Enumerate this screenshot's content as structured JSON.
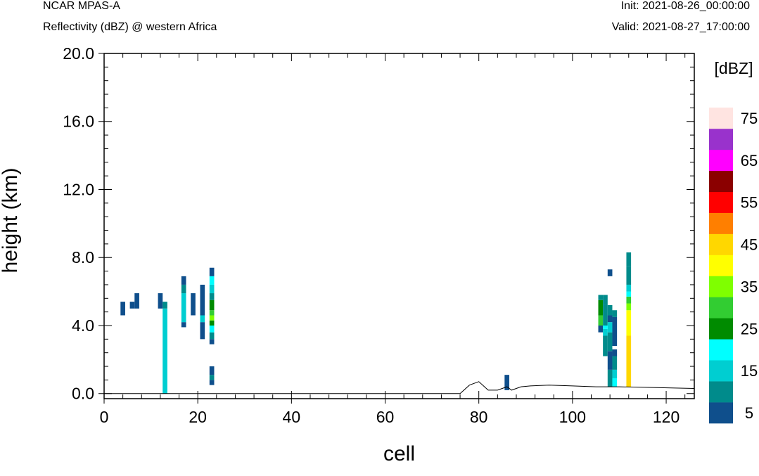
{
  "header": {
    "model": "NCAR MPAS-A",
    "field": "Reflectivity (dBZ) @ western Africa",
    "init": "Init: 2021-08-26_00:00:00",
    "valid": "Valid: 2021-08-27_17:00:00"
  },
  "chart_data": {
    "type": "heatmap",
    "title": "Reflectivity (dBZ) @ western Africa",
    "xlabel": "cell",
    "ylabel": "height (km)",
    "xlim": [
      0,
      126
    ],
    "ylim": [
      -0.3,
      20
    ],
    "xticks": [
      0,
      20,
      40,
      60,
      80,
      100,
      120
    ],
    "xtick_labels": [
      "0",
      "20",
      "40",
      "60",
      "80",
      "100",
      "120"
    ],
    "yticks": [
      0,
      4,
      8,
      12,
      16,
      20
    ],
    "ytick_labels": [
      "0.0",
      "4.0",
      "8.0",
      "12.0",
      "16.0",
      "20.0"
    ],
    "colorbar": {
      "unit_label": "[dBZ]",
      "levels": [
        5,
        10,
        15,
        20,
        25,
        30,
        35,
        40,
        45,
        50,
        55,
        60,
        65,
        70,
        75
      ],
      "colors": [
        "#0F4F8C",
        "#008B8B",
        "#00CED1",
        "#00FFFF",
        "#008B00",
        "#32CD32",
        "#7FFF00",
        "#FFFF00",
        "#FFD700",
        "#FF7F00",
        "#FF0000",
        "#8B0000",
        "#FF00FF",
        "#9932CC",
        "#FFE4E1"
      ],
      "tick_labels": [
        "5",
        "15",
        "25",
        "35",
        "45",
        "55",
        "65",
        "75"
      ],
      "tick_levels": [
        5,
        15,
        25,
        35,
        45,
        55,
        65,
        75
      ]
    },
    "terrain": [
      [
        0,
        0
      ],
      [
        76,
        0
      ],
      [
        78,
        0.5
      ],
      [
        80,
        0.7
      ],
      [
        82,
        0.2
      ],
      [
        84,
        0.2
      ],
      [
        86,
        0.4
      ],
      [
        87,
        0.2
      ],
      [
        89,
        0.4
      ],
      [
        91,
        0.45
      ],
      [
        95,
        0.5
      ],
      [
        100,
        0.45
      ],
      [
        105,
        0.4
      ],
      [
        110,
        0.4
      ],
      [
        126,
        0.3
      ]
    ],
    "cells": [
      {
        "x": 4,
        "segments": [
          [
            4.6,
            5.4,
            5
          ]
        ]
      },
      {
        "x": 6,
        "segments": [
          [
            5.0,
            5.4,
            5
          ]
        ]
      },
      {
        "x": 7,
        "segments": [
          [
            5.0,
            5.9,
            5
          ]
        ]
      },
      {
        "x": 12,
        "segments": [
          [
            5.0,
            5.9,
            5
          ]
        ]
      },
      {
        "x": 13,
        "segments": [
          [
            0,
            5.0,
            15
          ],
          [
            5.0,
            5.4,
            10
          ]
        ]
      },
      {
        "x": 17,
        "segments": [
          [
            3.9,
            4.2,
            5
          ],
          [
            4.2,
            5.9,
            15
          ],
          [
            5.9,
            6.4,
            10
          ],
          [
            6.4,
            6.9,
            5
          ]
        ]
      },
      {
        "x": 19,
        "segments": [
          [
            4.6,
            5.9,
            5
          ]
        ]
      },
      {
        "x": 21,
        "segments": [
          [
            3.2,
            4.2,
            5
          ],
          [
            4.2,
            4.6,
            15
          ],
          [
            4.6,
            6.4,
            5
          ]
        ]
      },
      {
        "x": 23,
        "segments": [
          [
            0.5,
            0.8,
            5
          ],
          [
            0.8,
            1.1,
            10
          ],
          [
            1.1,
            1.6,
            5
          ],
          [
            2.9,
            3.2,
            5
          ],
          [
            3.2,
            3.6,
            10
          ],
          [
            3.6,
            4.0,
            20
          ],
          [
            4.0,
            4.3,
            25
          ],
          [
            4.3,
            4.6,
            35
          ],
          [
            4.6,
            4.9,
            30
          ],
          [
            4.9,
            5.5,
            25
          ],
          [
            5.5,
            5.9,
            10
          ],
          [
            5.9,
            6.4,
            15
          ],
          [
            6.4,
            6.9,
            20
          ],
          [
            6.9,
            7.4,
            5
          ]
        ]
      },
      {
        "x": 86,
        "segments": [
          [
            0.2,
            1.1,
            5
          ]
        ]
      },
      {
        "x": 106,
        "segments": [
          [
            3.6,
            4.0,
            5
          ],
          [
            4.0,
            4.6,
            30
          ],
          [
            4.6,
            5.5,
            25
          ],
          [
            5.5,
            5.8,
            10
          ]
        ]
      },
      {
        "x": 107,
        "segments": [
          [
            2.2,
            3.4,
            10
          ],
          [
            3.4,
            3.8,
            15
          ],
          [
            3.8,
            4.0,
            20
          ],
          [
            4.0,
            5.2,
            10
          ],
          [
            5.2,
            5.8,
            10
          ]
        ]
      },
      {
        "x": 108,
        "segments": [
          [
            0.4,
            1.4,
            10
          ],
          [
            1.4,
            2.5,
            5
          ],
          [
            2.5,
            3.6,
            10
          ],
          [
            3.6,
            4.2,
            15
          ],
          [
            4.2,
            4.6,
            5
          ],
          [
            4.6,
            5.2,
            10
          ],
          [
            6.9,
            7.3,
            5
          ]
        ]
      },
      {
        "x": 109,
        "segments": [
          [
            0.4,
            0.9,
            20
          ],
          [
            0.9,
            1.4,
            15
          ],
          [
            1.4,
            2.2,
            10
          ],
          [
            2.2,
            2.6,
            5
          ],
          [
            2.8,
            4.5,
            5
          ],
          [
            4.5,
            4.9,
            10
          ]
        ]
      },
      {
        "x": 112,
        "segments": [
          [
            0.4,
            3.4,
            45
          ],
          [
            3.4,
            4.9,
            40
          ],
          [
            4.9,
            5.3,
            35
          ],
          [
            5.3,
            5.7,
            30
          ],
          [
            5.7,
            6.0,
            20
          ],
          [
            6.0,
            6.4,
            15
          ],
          [
            6.4,
            7.5,
            10
          ],
          [
            7.5,
            8.3,
            10
          ]
        ]
      }
    ]
  }
}
